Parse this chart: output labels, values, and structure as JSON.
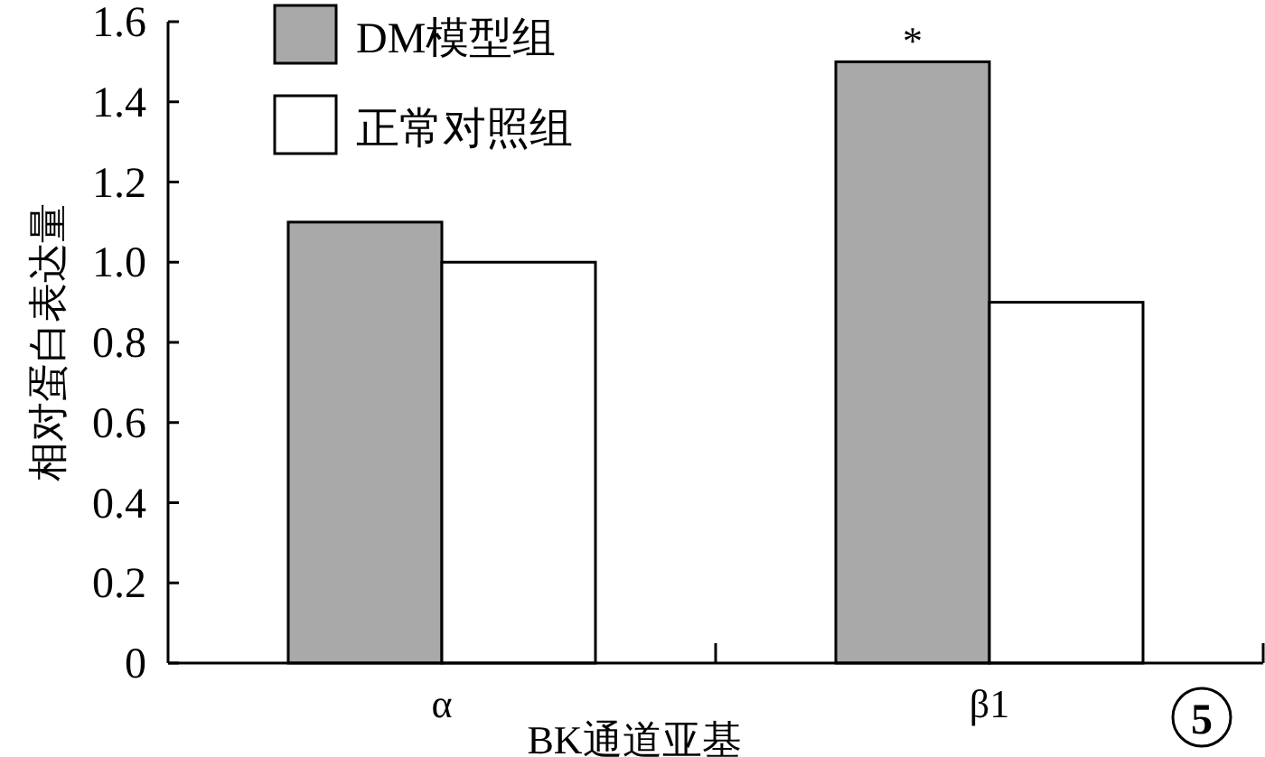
{
  "chart_data": {
    "type": "bar",
    "xlabel": "BK通道亚基",
    "ylabel": "相对蛋白表达量",
    "categories": [
      "α",
      "β1"
    ],
    "series": [
      {
        "name": "DM模型组",
        "color": "#a9a9a9",
        "values": [
          1.1,
          1.5
        ]
      },
      {
        "name": "正常对照组",
        "color": "#ffffff",
        "values": [
          1.0,
          0.9
        ]
      }
    ],
    "ylim": [
      0,
      1.6
    ],
    "yticks": [
      0,
      {
        "value": 0.2,
        "label": "0.2"
      },
      {
        "value": 0.4,
        "label": "0.4"
      },
      {
        "value": 0.6,
        "label": "0.6"
      },
      {
        "value": 0.8,
        "label": "0.8"
      },
      {
        "value": 1.0,
        "label": "1.0"
      },
      {
        "value": 1.2,
        "label": "1.2"
      },
      {
        "value": 1.4,
        "label": "1.4"
      },
      {
        "value": 1.6,
        "label": "1.6"
      }
    ],
    "annotations": [
      {
        "text": "*",
        "x": "β1",
        "y": 1.5
      },
      "5"
    ],
    "legend": "top left",
    "grid": false
  }
}
